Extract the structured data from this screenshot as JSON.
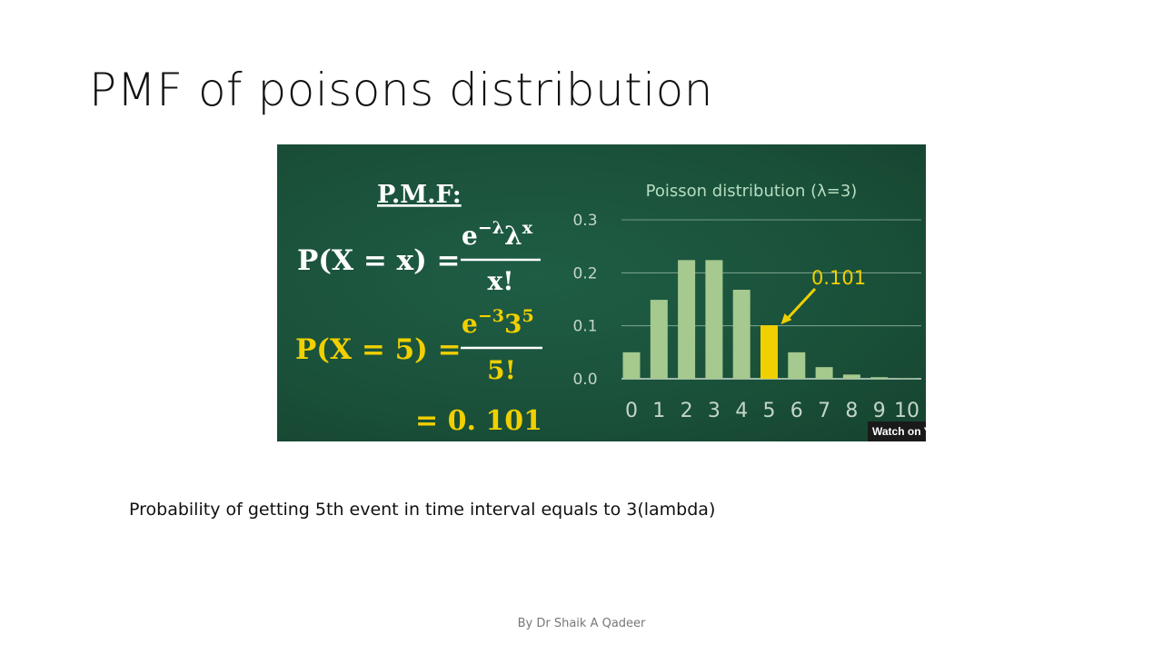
{
  "slide": {
    "title": "PMF of poisons distribution",
    "caption": "Probability of getting 5th event in time interval equals to 3(lambda)",
    "footer": "By Dr Shaik A Qadeer"
  },
  "formula": {
    "heading": "P.M.F:",
    "general_lhs": "P(X = x) =",
    "general_numerator_base": "e",
    "general_numerator_exp": "−λ",
    "general_numerator_base2": "λ",
    "general_numerator_exp2": "x",
    "general_denominator": "x!",
    "specific_lhs": "P(X = 5) =",
    "specific_numerator_base": "e",
    "specific_numerator_exp": "−3",
    "specific_numerator_base2": "3",
    "specific_numerator_exp2": "5",
    "specific_denominator": "5!",
    "result": "= 0. 101"
  },
  "video_badge": "Watch on Y",
  "colors": {
    "board": "#1b5440",
    "bar": "#a5c98e",
    "highlight": "#f0d000",
    "chalk": "#ffffff",
    "axis_text": "#c3d6c8",
    "title_text": "#b6ddc0"
  },
  "chart_data": {
    "type": "bar",
    "title": "Poisson distribution (λ=3)",
    "categories": [
      "0",
      "1",
      "2",
      "3",
      "4",
      "5",
      "6",
      "7",
      "8",
      "9",
      "10"
    ],
    "values": [
      0.05,
      0.149,
      0.224,
      0.224,
      0.168,
      0.101,
      0.05,
      0.022,
      0.008,
      0.003,
      0.001
    ],
    "ylim": [
      0,
      0.3
    ],
    "yticks": [
      "0.0",
      "0.1",
      "0.2",
      "0.3"
    ],
    "grid": true,
    "highlight_index": 5,
    "annotation": "0.101"
  }
}
